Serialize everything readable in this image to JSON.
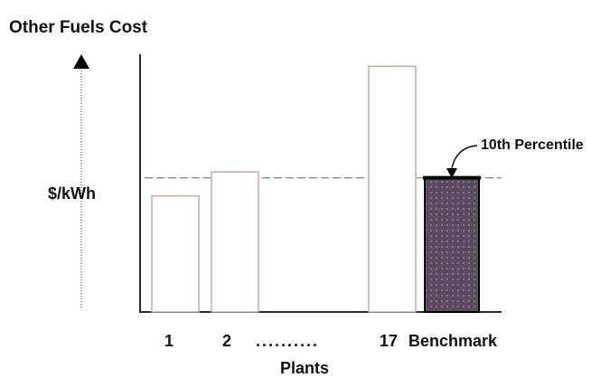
{
  "chart_data": {
    "type": "bar",
    "title": "Other Fuels Cost",
    "ylabel": "$/kWh",
    "xlabel": "Plants",
    "categories": [
      "1",
      "2",
      "17",
      "Benchmark"
    ],
    "x_gap_label": "..........",
    "values": [
      0.77,
      0.93,
      1.63,
      0.89
    ],
    "ylim": [
      0,
      1.8
    ],
    "reference_line": {
      "value": 0.89,
      "style": "dashed"
    },
    "annotation": {
      "text": "10th Percentile",
      "target": "Benchmark"
    },
    "highlight": {
      "category": "Benchmark",
      "fill": "#5b4a5f",
      "pattern": "dotted"
    },
    "bar_outline_color": "#d4a1a1",
    "grid": false,
    "legend": "none"
  }
}
